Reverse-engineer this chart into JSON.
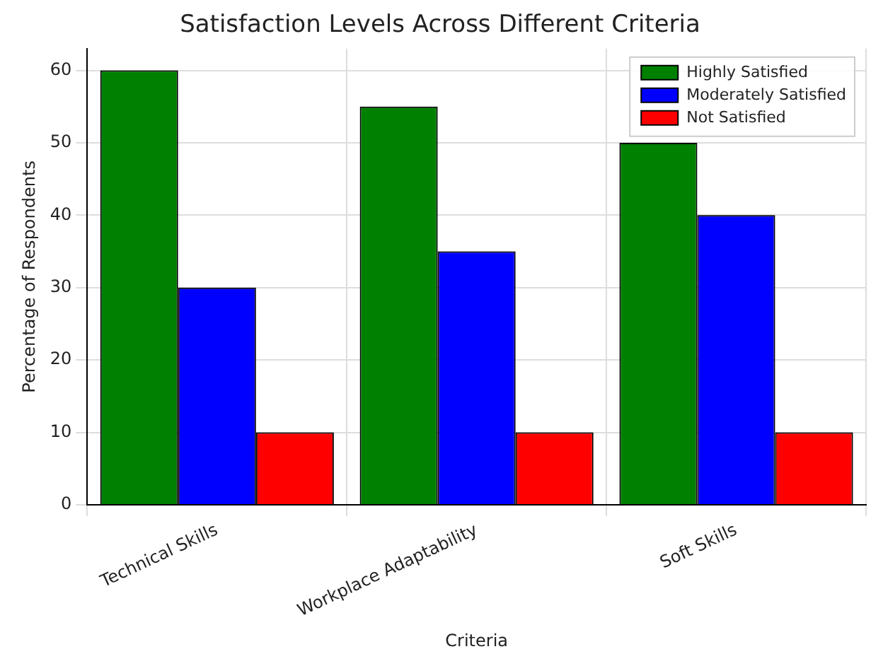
{
  "chart_data": {
    "type": "bar",
    "title": "Satisfaction Levels Across Different Criteria",
    "xlabel": "Criteria",
    "ylabel": "Percentage of Respondents",
    "categories": [
      "Technical Skills",
      "Workplace Adaptability",
      "Soft Skills"
    ],
    "series": [
      {
        "name": "Highly Satisfied",
        "color": "#008000",
        "values": [
          60,
          55,
          50
        ]
      },
      {
        "name": "Moderately Satisfied",
        "color": "#0000ff",
        "values": [
          30,
          35,
          40
        ]
      },
      {
        "name": "Not Satisfied",
        "color": "#ff0000",
        "values": [
          10,
          10,
          10
        ]
      }
    ],
    "ylim": [
      0,
      63
    ],
    "yticks": [
      0,
      10,
      20,
      30,
      40,
      50,
      60
    ],
    "grid": true,
    "legend": "top right"
  }
}
